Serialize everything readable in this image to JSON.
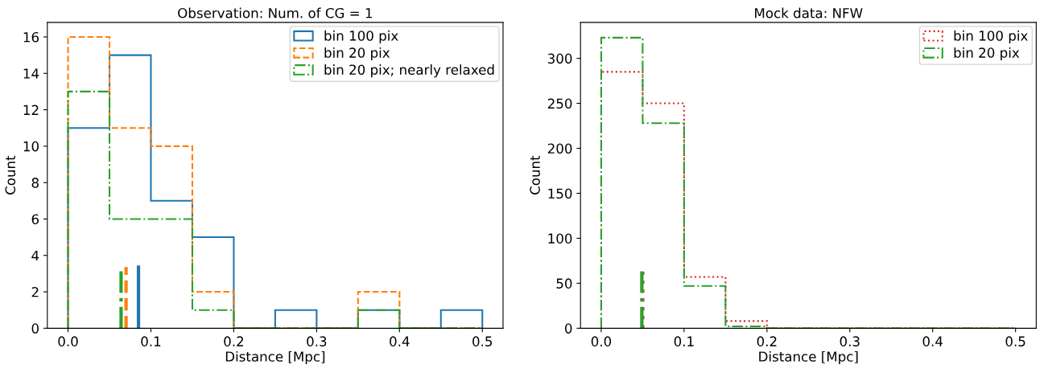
{
  "chart_data": [
    {
      "type": "histogram",
      "title": "Observation: Num. of CG = 1",
      "xlabel": "Distance [Mpc]",
      "ylabel": "Count",
      "xlim": [
        -0.025,
        0.525
      ],
      "xticks": [
        {
          "value": 0,
          "label": "0.0"
        },
        0.1,
        0.2,
        0.3,
        0.4,
        0.5
      ],
      "ylim": [
        0,
        16.8
      ],
      "yticks": [
        0,
        2,
        4,
        6,
        8,
        10,
        12,
        14,
        16
      ],
      "legend": "top right",
      "bins": [
        0,
        0.05,
        0.1,
        0.15,
        0.2,
        0.25,
        0.3,
        0.35,
        0.4,
        0.45,
        0.5
      ],
      "series": [
        {
          "name": "bin 100 pix",
          "color": "#1f77b4",
          "line_style": "solid",
          "values": [
            11,
            15,
            7,
            5,
            0,
            1,
            0,
            1,
            0,
            1
          ]
        },
        {
          "name": "bin 20 pix",
          "color": "#ff7f0e",
          "line_style": "dashed",
          "values": [
            16,
            11,
            10,
            2,
            0,
            0,
            0,
            2,
            0,
            0
          ]
        },
        {
          "name": "bin 20 pix; nearly relaxed",
          "color": "#2ca02c",
          "line_style": "dashdot",
          "values": [
            13,
            6,
            6,
            1,
            0,
            0,
            0,
            1,
            0,
            0
          ]
        }
      ],
      "ref_lines": [
        {
          "axis": "x",
          "value": 0.085,
          "color": "#1f77b4",
          "line_style": "solid"
        },
        {
          "axis": "x",
          "value": 0.07,
          "color": "#ff7f0e",
          "line_style": "dashed"
        },
        {
          "axis": "x",
          "value": 0.064,
          "color": "#2ca02c",
          "line_style": "dashdot"
        }
      ]
    },
    {
      "type": "histogram",
      "title": "Mock data: NFW",
      "xlabel": "Distance [Mpc]",
      "ylabel": "Count",
      "xlim": [
        -0.025,
        0.525
      ],
      "xticks": [
        {
          "value": 0,
          "label": "0.0"
        },
        0.1,
        0.2,
        0.3,
        0.4,
        0.5
      ],
      "ylim": [
        0,
        340
      ],
      "yticks": [
        0,
        50,
        100,
        150,
        200,
        250,
        300
      ],
      "legend": "top right",
      "bins": [
        0,
        0.05,
        0.1,
        0.15,
        0.2,
        0.25,
        0.3,
        0.35,
        0.4,
        0.45,
        0.5
      ],
      "series": [
        {
          "name": "bin 100 pix",
          "color": "#d62728",
          "line_style": "dotted",
          "values": [
            285,
            250,
            57,
            8,
            0,
            0,
            0,
            0,
            0,
            0
          ]
        },
        {
          "name": "bin 20 pix",
          "color": "#2ca02c",
          "line_style": "dashdot",
          "values": [
            323,
            228,
            47,
            2,
            0,
            0,
            0,
            0,
            0,
            0
          ]
        }
      ],
      "ref_lines": [
        {
          "axis": "x",
          "value": 0.05,
          "color": "#d62728",
          "line_style": "dotted"
        },
        {
          "axis": "x",
          "value": 0.049,
          "color": "#2ca02c",
          "line_style": "dashdot"
        }
      ]
    }
  ]
}
